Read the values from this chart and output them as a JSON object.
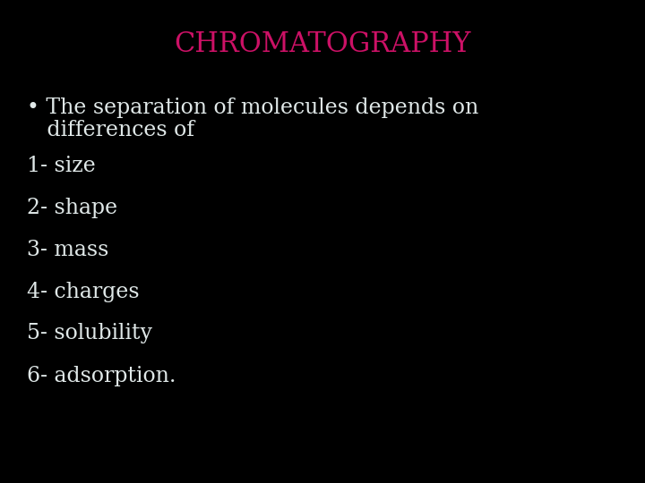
{
  "background_color": "#000000",
  "title": "CHROMATOGRAPHY",
  "title_color": "#CC1166",
  "title_fontsize": 22,
  "title_bold": false,
  "bullet_line1": "• The separation of molecules depends on",
  "bullet_line2": "   differences of",
  "list_items": [
    "1- size",
    "2- shape",
    "3- mass",
    "4- charges",
    "5- solubility",
    "6- adsorption."
  ],
  "text_color": "#E0E8E8",
  "text_fontsize": 17,
  "font_family": "DejaVu Serif"
}
